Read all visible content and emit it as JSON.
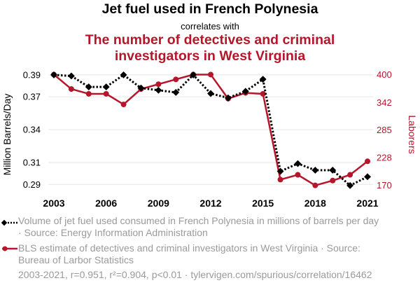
{
  "header": {
    "title": "Jet fuel used in French Polynesia",
    "correlates": "correlates with",
    "title2_line1": "The number of detectives and criminal",
    "title2_line2": "investigators in West Virginia"
  },
  "chart_data": {
    "type": "line",
    "x": [
      2003,
      2004,
      2005,
      2006,
      2007,
      2008,
      2009,
      2010,
      2011,
      2012,
      2013,
      2014,
      2015,
      2016,
      2017,
      2018,
      2019,
      2020,
      2021
    ],
    "x_ticks": [
      "2003",
      "2006",
      "2009",
      "2012",
      "2015",
      "2018",
      "2021"
    ],
    "x_tick_values": [
      2003,
      2006,
      2009,
      2012,
      2015,
      2018,
      2021
    ],
    "left_axis": {
      "label": "Million Barrels/Day",
      "range": [
        0.2825,
        0.3925
      ],
      "ticks": [
        "0.29",
        "0.31",
        "0.34",
        "0.37",
        "0.39"
      ],
      "tick_values": [
        0.29,
        0.31,
        0.34,
        0.37,
        0.39
      ]
    },
    "right_axis": {
      "label": "Laborers",
      "range": [
        155,
        405
      ],
      "ticks": [
        "170",
        "228",
        "285",
        "342",
        "400"
      ],
      "tick_values": [
        170,
        228,
        285,
        342,
        400
      ]
    },
    "series": [
      {
        "name": "Volume of jet fuel used consumed in French Polynesia in millions of barrels per day",
        "axis": "left",
        "color": "#000000",
        "style": "dotted",
        "marker": "diamond",
        "values": [
          0.39,
          0.389,
          0.379,
          0.379,
          0.39,
          0.378,
          0.376,
          0.374,
          0.39,
          0.373,
          0.369,
          0.375,
          0.386,
          0.302,
          0.309,
          0.303,
          0.303,
          0.289,
          0.297
        ]
      },
      {
        "name": "BLS estimate of detectives and criminal investigators in West Virginia",
        "axis": "right",
        "color": "#b5162b",
        "style": "solid",
        "marker": "circle",
        "values": [
          400,
          370,
          360,
          360,
          338,
          370,
          380,
          390,
          400,
          400,
          350,
          362,
          360,
          182,
          192,
          170,
          180,
          192,
          220
        ]
      }
    ]
  },
  "legend": {
    "series1": "Volume of jet fuel used consumed in French Polynesia in millions of barrels per day · Source: Energy Information Administration",
    "series2": "BLS estimate of detectives and criminal investigators in West Virginia · Source: Bureau of Larbor Statistics"
  },
  "footer": "2003-2021, r=0.951, r²=0.904, p<0.01 · tylervigen.com/spurious/correlation/16462",
  "colors": {
    "accent": "#b5162b",
    "ink": "#000000",
    "muted": "#9a9a9a",
    "grid": "#e6e6e6"
  }
}
